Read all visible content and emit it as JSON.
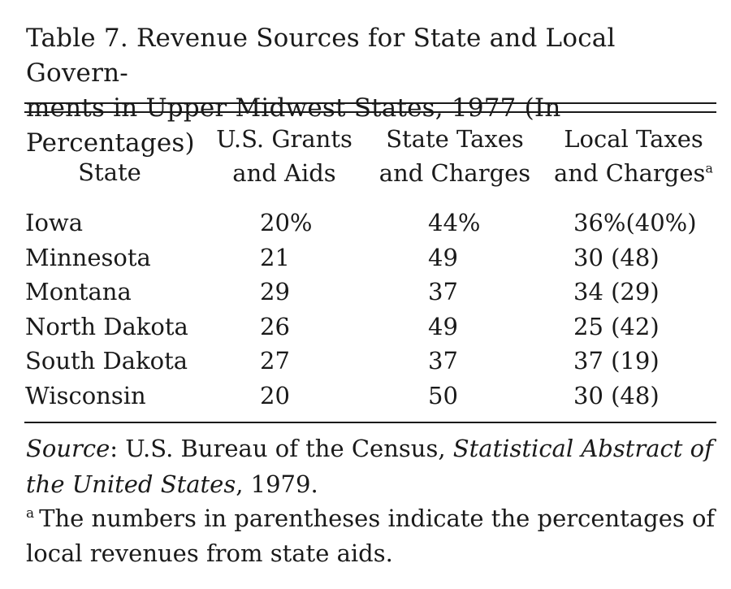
{
  "title": {
    "line1": "Table 7. Revenue Sources for State and Local Govern-",
    "line2": "ments in Upper Midwest States, 1977 (In Percentages)"
  },
  "columns": {
    "state": "State",
    "us_grants_line1": "U.S. Grants",
    "us_grants_line2": "and Aids",
    "state_taxes_line1": "State Taxes",
    "state_taxes_line2": "and Charges",
    "local_taxes_line1": "Local Taxes",
    "local_taxes_line2": "and Charges",
    "local_taxes_footnote_mark": "a"
  },
  "rows": [
    {
      "state": "Iowa",
      "us_grants": "20%",
      "state_taxes": "44%",
      "local_taxes": "36%(40%)"
    },
    {
      "state": "Minnesota",
      "us_grants": "21",
      "state_taxes": "49",
      "local_taxes": "30 (48)"
    },
    {
      "state": "Montana",
      "us_grants": "29",
      "state_taxes": "37",
      "local_taxes": "34 (29)"
    },
    {
      "state": "North Dakota",
      "us_grants": "26",
      "state_taxes": "49",
      "local_taxes": "25 (42)"
    },
    {
      "state": "South Dakota",
      "us_grants": "27",
      "state_taxes": "37",
      "local_taxes": "37 (19)"
    },
    {
      "state": "Wisconsin",
      "us_grants": "20",
      "state_taxes": "50",
      "local_taxes": "30 (48)"
    }
  ],
  "source": {
    "label": "Source",
    "agency": ": U.S. Bureau of the Census, ",
    "publication": "Statistical Abstract of the United States",
    "year": ", 1979."
  },
  "footnote": {
    "mark": "a",
    "text": "The numbers in parentheses indicate the percentages of local revenues from state aids."
  }
}
